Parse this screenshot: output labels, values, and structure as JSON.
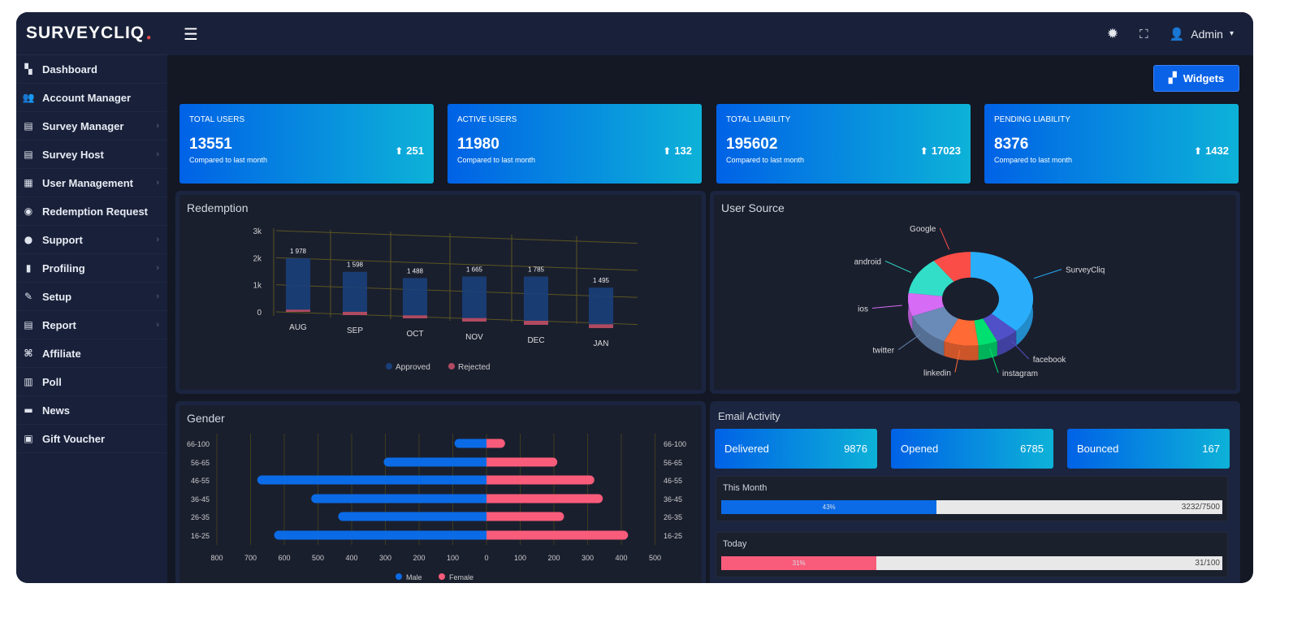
{
  "brand": {
    "logo": "SURVEYCLIQ"
  },
  "sidebar": {
    "items": [
      {
        "label": "Dashboard",
        "icon": "dashboard-icon",
        "glyph": "▚",
        "chevron": false
      },
      {
        "label": "Account Manager",
        "icon": "users-icon",
        "glyph": "👥",
        "chevron": false
      },
      {
        "label": "Survey Manager",
        "icon": "survey-icon",
        "glyph": "▤",
        "chevron": true
      },
      {
        "label": "Survey Host",
        "icon": "survey-host-icon",
        "glyph": "▤",
        "chevron": true
      },
      {
        "label": "User Management",
        "icon": "user-management-icon",
        "glyph": "▦",
        "chevron": true
      },
      {
        "label": "Redemption Request",
        "icon": "redemption-icon",
        "glyph": "◉",
        "chevron": false
      },
      {
        "label": "Support",
        "icon": "support-icon",
        "glyph": "●",
        "chevron": true
      },
      {
        "label": "Profiling",
        "icon": "profiling-icon",
        "glyph": "▮",
        "chevron": true
      },
      {
        "label": "Setup",
        "icon": "setup-icon",
        "glyph": "✎",
        "chevron": true
      },
      {
        "label": "Report",
        "icon": "report-icon",
        "glyph": "▤",
        "chevron": true
      },
      {
        "label": "Affiliate",
        "icon": "affiliate-icon",
        "glyph": "⌘",
        "chevron": false
      },
      {
        "label": "Poll",
        "icon": "poll-icon",
        "glyph": "▥",
        "chevron": false
      },
      {
        "label": "News",
        "icon": "news-icon",
        "glyph": "▬",
        "chevron": false
      },
      {
        "label": "Gift Voucher",
        "icon": "gift-icon",
        "glyph": "▣",
        "chevron": false
      }
    ]
  },
  "header": {
    "user": "Admin",
    "widgets_label": "Widgets"
  },
  "stats": [
    {
      "title": "TOTAL USERS",
      "value": "13551",
      "sub": "Compared to last month",
      "change": "251"
    },
    {
      "title": "ACTIVE USERS",
      "value": "11980",
      "sub": "Compared to last month",
      "change": "132"
    },
    {
      "title": "TOTAL LIABILITY",
      "value": "195602",
      "sub": "Compared to last month",
      "change": "17023"
    },
    {
      "title": "PENDING LIABILITY",
      "value": "8376",
      "sub": "Compared to last month",
      "change": "1432"
    }
  ],
  "chart_data": [
    {
      "type": "bar",
      "title": "Redemption",
      "categories": [
        "AUG",
        "SEP",
        "OCT",
        "NOV",
        "DEC",
        "JAN"
      ],
      "series": [
        {
          "name": "Approved",
          "values": [
            1978,
            1598,
            1488,
            1665,
            1785,
            1495
          ],
          "labels": [
            "1 978",
            "1 598",
            "1 488",
            "1 665",
            "1 785",
            "1 495"
          ],
          "color": "#1a3f7a"
        },
        {
          "name": "Rejected",
          "values": [
            80,
            120,
            110,
            130,
            150,
            140
          ],
          "color": "#b04a60"
        }
      ],
      "yticks": [
        "0",
        "1k",
        "2k",
        "3k"
      ],
      "ylim": [
        0,
        3000
      ],
      "grid": true,
      "legend": "bottom"
    },
    {
      "type": "pie",
      "title": "User Source",
      "labels": [
        "SurveyCliq",
        "facebook",
        "instagram",
        "linkedin",
        "twitter",
        "ios",
        "android",
        "Google"
      ],
      "values": [
        37,
        6,
        5,
        9,
        12,
        8,
        13,
        10
      ],
      "colors": [
        "#2aaefc",
        "#5050c8",
        "#00e070",
        "#ff6a35",
        "#6a8ab8",
        "#d66cf5",
        "#33dec8",
        "#fa4d48"
      ]
    },
    {
      "type": "bar",
      "title": "Gender",
      "categories": [
        "66-100",
        "56-65",
        "46-55",
        "36-45",
        "26-35",
        "16-25"
      ],
      "series": [
        {
          "name": "Male",
          "values": [
            95,
            305,
            680,
            520,
            440,
            630
          ],
          "color": "#0b6be6"
        },
        {
          "name": "Female",
          "values": [
            55,
            210,
            320,
            345,
            230,
            420
          ],
          "color": "#f95c7a"
        }
      ],
      "xticks": [
        "800",
        "700",
        "600",
        "500",
        "400",
        "300",
        "200",
        "100",
        "0",
        "100",
        "200",
        "300",
        "400",
        "500"
      ],
      "grid": true,
      "legend": "bottom"
    }
  ],
  "email": {
    "title": "Email Activity",
    "boxes": [
      {
        "label": "Delivered",
        "value": "9876"
      },
      {
        "label": "Opened",
        "value": "6785"
      },
      {
        "label": "Bounced",
        "value": "167"
      }
    ],
    "progress": [
      {
        "label": "This Month",
        "percent": 43,
        "percent_label": "43%",
        "count": "3232/7500",
        "color": "#0b6be6"
      },
      {
        "label": "Today",
        "percent": 31,
        "percent_label": "31%",
        "count": "31/100",
        "color": "#f95c7a"
      }
    ]
  }
}
